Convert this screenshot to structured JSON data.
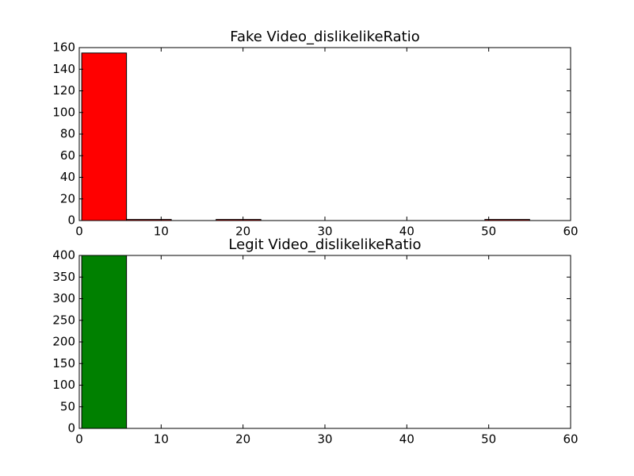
{
  "chart_data": [
    {
      "type": "histogram",
      "title": "Fake Video_dislikelikeRatio",
      "bins": [
        0.3,
        5.77,
        11.24,
        16.71,
        22.18,
        27.65,
        33.12,
        38.59,
        44.06,
        49.53,
        55.0
      ],
      "values": [
        155,
        1,
        0,
        1,
        0,
        0,
        0,
        0,
        0,
        1
      ],
      "color": "#ff0000",
      "xlim": [
        0,
        60
      ],
      "xticks": [
        0,
        10,
        20,
        30,
        40,
        50,
        60
      ],
      "ylim": [
        0,
        160
      ],
      "yticks": [
        0,
        20,
        40,
        60,
        80,
        100,
        120,
        140,
        160
      ]
    },
    {
      "type": "histogram",
      "title": "Legit Video_dislikelikeRatio",
      "bins": [
        0.3,
        5.77,
        11.24,
        16.71,
        22.18,
        27.65,
        33.12,
        38.59,
        44.06,
        49.53,
        55.0
      ],
      "values": [
        400,
        0,
        0,
        0,
        0,
        0,
        0,
        0,
        0,
        0
      ],
      "color": "#008000",
      "xlim": [
        0,
        60
      ],
      "xticks": [
        0,
        10,
        20,
        30,
        40,
        50,
        60
      ],
      "ylim": [
        0,
        400
      ],
      "yticks": [
        0,
        50,
        100,
        150,
        200,
        250,
        300,
        350,
        400
      ]
    }
  ]
}
